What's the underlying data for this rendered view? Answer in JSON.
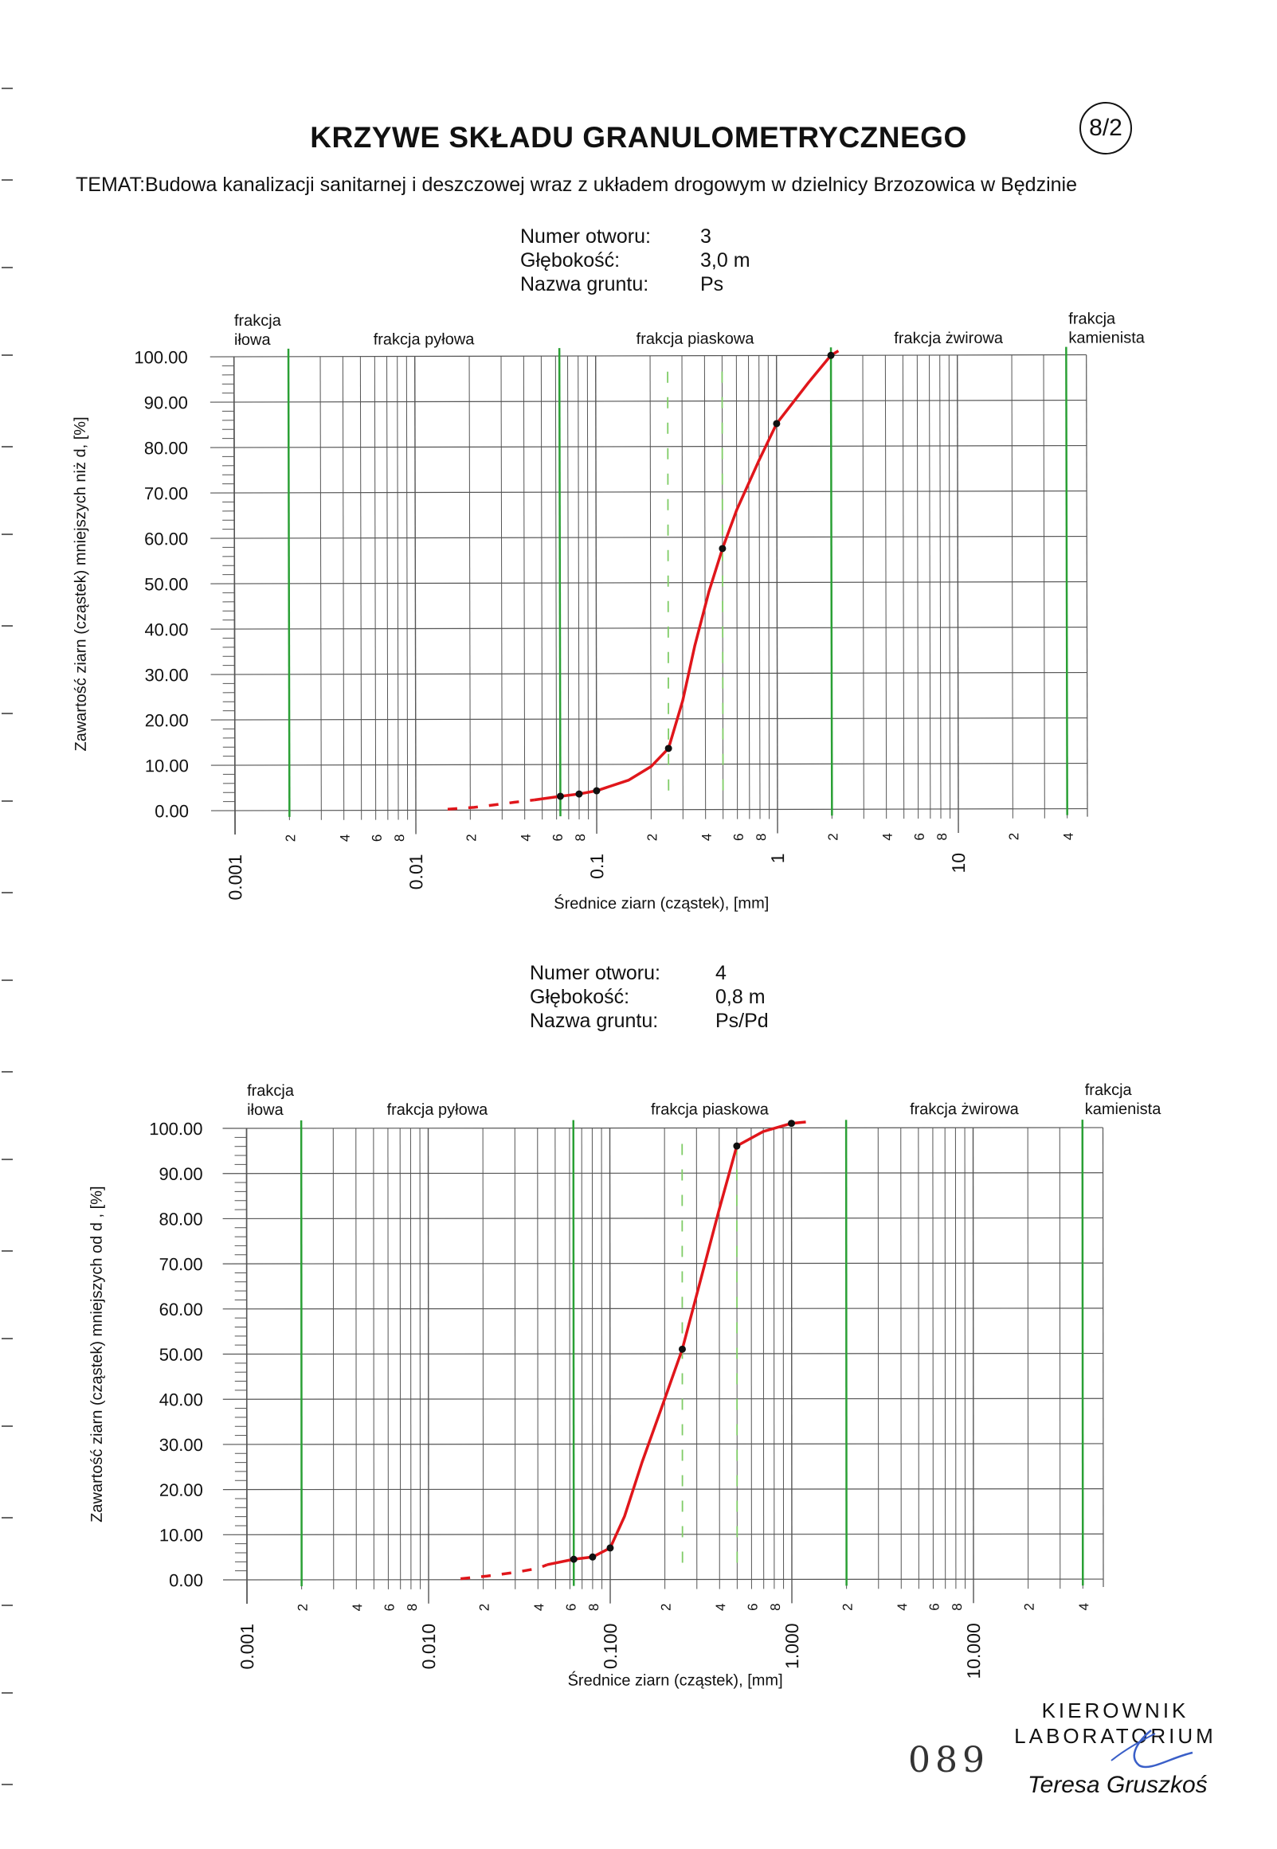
{
  "header": {
    "title": "KRZYWE SKŁADU GRANULOMETRYCZNEGO",
    "badge": "8/2",
    "subject": "TEMAT:Budowa kanalizacji sanitarnej i deszczowej wraz z układem drogowym w dzielnicy Brzozowica w Będzinie"
  },
  "colors": {
    "curve": "#e0161b",
    "fraction_line": "#2aa035",
    "dashed_line": "#7fcc66",
    "grid": "#555555",
    "text": "#111111"
  },
  "chart_data": [
    {
      "type": "line",
      "x_scale": "log",
      "xlim": [
        0.001,
        40
      ],
      "ylim": [
        0,
        100
      ],
      "grid": true,
      "xlabel": "Średnice ziarn (cząstek), [mm]",
      "ylabel": "Zawartość ziarn (cząstek) mniejszych niż d, [%]",
      "info": {
        "hole_label": "Numer otworu:",
        "hole_value": "3",
        "depth_label": "Głębokość:",
        "depth_value": "3,0 m",
        "soil_label": "Nazwa gruntu:",
        "soil_value": "Ps"
      },
      "y_ticks": [
        "0.00",
        "10.00",
        "20.00",
        "30.00",
        "40.00",
        "50.00",
        "60.00",
        "70.00",
        "80.00",
        "90.00",
        "100.00"
      ],
      "x_major_ticks": [
        {
          "x": 0.001,
          "label": "0.001"
        },
        {
          "x": 0.01,
          "label": "0.01"
        },
        {
          "x": 0.1,
          "label": "0.1"
        },
        {
          "x": 1,
          "label": "1"
        },
        {
          "x": 10,
          "label": "10"
        }
      ],
      "x_minor_labels": [
        {
          "x": 0.002,
          "label": "2"
        },
        {
          "x": 0.004,
          "label": "4"
        },
        {
          "x": 0.006,
          "label": "6"
        },
        {
          "x": 0.008,
          "label": "8"
        },
        {
          "x": 0.02,
          "label": "2"
        },
        {
          "x": 0.04,
          "label": "4"
        },
        {
          "x": 0.06,
          "label": "6"
        },
        {
          "x": 0.08,
          "label": "8"
        },
        {
          "x": 0.2,
          "label": "2"
        },
        {
          "x": 0.4,
          "label": "4"
        },
        {
          "x": 0.6,
          "label": "6"
        },
        {
          "x": 0.8,
          "label": "8"
        },
        {
          "x": 2,
          "label": "2"
        },
        {
          "x": 4,
          "label": "4"
        },
        {
          "x": 6,
          "label": "6"
        },
        {
          "x": 8,
          "label": "8"
        },
        {
          "x": 20,
          "label": "2"
        },
        {
          "x": 40,
          "label": "4"
        }
      ],
      "fractions": [
        {
          "name": "frakcja\niłowa"
        },
        {
          "name": "frakcja pyłowa"
        },
        {
          "name": "frakcja piaskowa"
        },
        {
          "name": "frakcja żwirowa"
        },
        {
          "name": "frakcja\nkamienista"
        }
      ],
      "fraction_bounds": [
        0.002,
        0.063,
        2,
        40
      ],
      "dashed_bounds": [
        0.25,
        0.5
      ],
      "series": [
        {
          "dashed_points": [
            [
              0.015,
              0.2
            ],
            [
              0.021,
              0.6
            ],
            [
              0.028,
              1.2
            ],
            [
              0.035,
              1.7
            ],
            [
              0.045,
              2.2
            ]
          ],
          "points": [
            [
              0.063,
              3.0
            ],
            [
              0.08,
              3.5
            ],
            [
              0.1,
              4.2
            ],
            [
              0.25,
              13.5
            ],
            [
              0.5,
              57.5
            ],
            [
              1.0,
              85.0
            ],
            [
              2.0,
              100.0
            ]
          ],
          "curve": [
            [
              0.045,
              2.2
            ],
            [
              0.063,
              3.0
            ],
            [
              0.08,
              3.5
            ],
            [
              0.1,
              4.2
            ],
            [
              0.15,
              6.5
            ],
            [
              0.2,
              9.5
            ],
            [
              0.25,
              13.5
            ],
            [
              0.3,
              24
            ],
            [
              0.35,
              36
            ],
            [
              0.42,
              48
            ],
            [
              0.5,
              57.5
            ],
            [
              0.6,
              66
            ],
            [
              0.8,
              77
            ],
            [
              1.0,
              85.0
            ],
            [
              1.5,
              94
            ],
            [
              2.0,
              100.0
            ],
            [
              2.2,
              101
            ]
          ]
        }
      ]
    },
    {
      "type": "line",
      "x_scale": "log",
      "xlim": [
        0.001,
        40
      ],
      "ylim": [
        0,
        100
      ],
      "grid": true,
      "xlabel": "Średnice ziarn (cząstek), [mm]",
      "ylabel": "Zawartość ziarn (cząstek) mniejszych od d , [%]",
      "info": {
        "hole_label": "Numer otworu:",
        "hole_value": "4",
        "depth_label": "Głębokość:",
        "depth_value": "0,8 m",
        "soil_label": "Nazwa gruntu:",
        "soil_value": "Ps/Pd"
      },
      "y_ticks": [
        "0.00",
        "10.00",
        "20.00",
        "30.00",
        "40.00",
        "50.00",
        "60.00",
        "70.00",
        "80.00",
        "90.00",
        "100.00"
      ],
      "x_major_ticks": [
        {
          "x": 0.001,
          "label": "0.001"
        },
        {
          "x": 0.01,
          "label": "0.010"
        },
        {
          "x": 0.1,
          "label": "0.100"
        },
        {
          "x": 1,
          "label": "1.000"
        },
        {
          "x": 10,
          "label": "10.000"
        }
      ],
      "x_minor_labels": [
        {
          "x": 0.002,
          "label": "2"
        },
        {
          "x": 0.004,
          "label": "4"
        },
        {
          "x": 0.006,
          "label": "6"
        },
        {
          "x": 0.008,
          "label": "8"
        },
        {
          "x": 0.02,
          "label": "2"
        },
        {
          "x": 0.04,
          "label": "4"
        },
        {
          "x": 0.06,
          "label": "6"
        },
        {
          "x": 0.08,
          "label": "8"
        },
        {
          "x": 0.2,
          "label": "2"
        },
        {
          "x": 0.4,
          "label": "4"
        },
        {
          "x": 0.6,
          "label": "6"
        },
        {
          "x": 0.8,
          "label": "8"
        },
        {
          "x": 2,
          "label": "2"
        },
        {
          "x": 4,
          "label": "4"
        },
        {
          "x": 6,
          "label": "6"
        },
        {
          "x": 8,
          "label": "8"
        },
        {
          "x": 20,
          "label": "2"
        },
        {
          "x": 40,
          "label": "4"
        }
      ],
      "fractions": [
        {
          "name": "frakcja\niłowa"
        },
        {
          "name": "frakcja pyłowa"
        },
        {
          "name": "frakcja piaskowa"
        },
        {
          "name": "frakcja żwirowa"
        },
        {
          "name": "frakcja\nkamienista"
        }
      ],
      "fraction_bounds": [
        0.002,
        0.063,
        2,
        40
      ],
      "dashed_bounds": [
        0.25,
        0.5
      ],
      "series": [
        {
          "dashed_points": [
            [
              0.015,
              0.2
            ],
            [
              0.021,
              0.8
            ],
            [
              0.03,
              1.6
            ],
            [
              0.04,
              2.5
            ],
            [
              0.045,
              3.3
            ]
          ],
          "points": [
            [
              0.063,
              4.5
            ],
            [
              0.08,
              5.0
            ],
            [
              0.1,
              7.0
            ],
            [
              0.25,
              51.0
            ],
            [
              0.5,
              96.0
            ],
            [
              1.0,
              101.0
            ]
          ],
          "curve": [
            [
              0.045,
              3.3
            ],
            [
              0.063,
              4.5
            ],
            [
              0.08,
              5.0
            ],
            [
              0.1,
              7.0
            ],
            [
              0.12,
              14
            ],
            [
              0.15,
              26
            ],
            [
              0.2,
              40
            ],
            [
              0.25,
              51.0
            ],
            [
              0.3,
              63
            ],
            [
              0.4,
              82
            ],
            [
              0.5,
              96.0
            ],
            [
              0.7,
              99.2
            ],
            [
              1.0,
              101.0
            ],
            [
              1.2,
              101.3
            ]
          ]
        }
      ]
    }
  ],
  "footer": {
    "head": "KIEROWNIK\nLABORATORIUM",
    "number": "089",
    "signature": "Teresa Gruszkoś"
  }
}
